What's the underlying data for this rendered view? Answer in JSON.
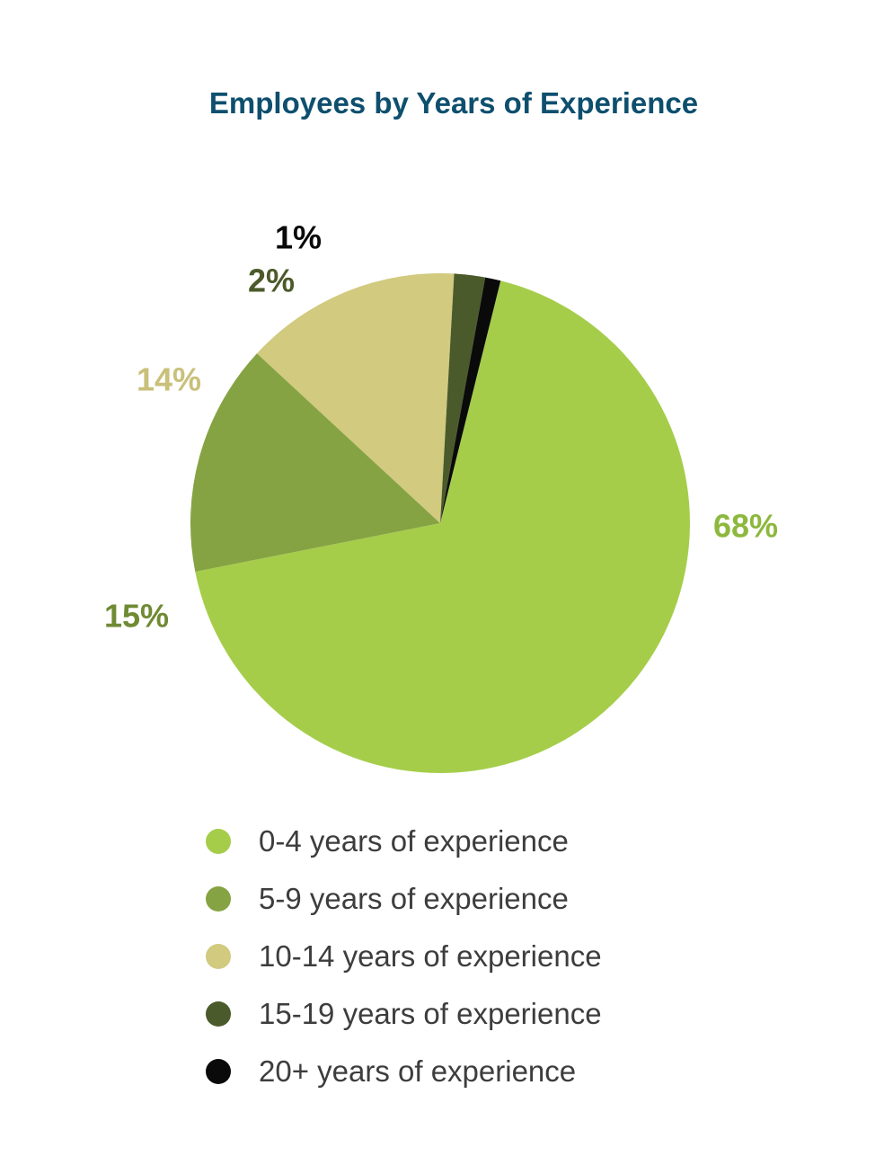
{
  "chart_data": {
    "type": "pie",
    "title": "Employees by Years of Experience",
    "legend_position": "bottom",
    "slices": [
      {
        "label": "0-4 years of experience",
        "value": 68,
        "value_label": "68%",
        "color": "#a5cd4a"
      },
      {
        "label": "5-9 years of experience",
        "value": 15,
        "value_label": "15%",
        "color": "#86a343"
      },
      {
        "label": "10-14 years of experience",
        "value": 14,
        "value_label": "14%",
        "color": "#d1ca7f"
      },
      {
        "label": "15-19 years of experience",
        "value": 2,
        "value_label": "2%",
        "color": "#4b5a2a"
      },
      {
        "label": "20+ years of experience",
        "value": 1,
        "value_label": "1%",
        "color": "#0a0a0a"
      }
    ]
  }
}
